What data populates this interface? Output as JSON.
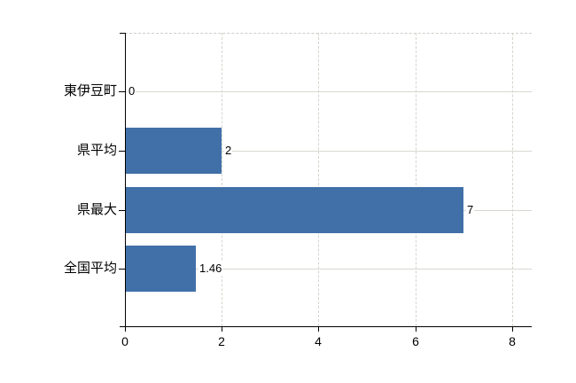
{
  "chart_data": {
    "type": "bar",
    "orientation": "horizontal",
    "title": "",
    "categories": [
      "東伊豆町",
      "県平均",
      "県最大",
      "全国平均"
    ],
    "values": [
      0,
      2,
      7,
      1.46
    ],
    "value_labels": [
      "0",
      "2",
      "7",
      "1.46"
    ],
    "x_ticks": [
      0,
      2,
      4,
      6,
      8
    ],
    "x_tick_labels": [
      "0",
      "2",
      "4",
      "6",
      "8"
    ],
    "xlim": [
      0,
      8.4
    ],
    "ylabel": "",
    "xlabel": "",
    "grid": true,
    "legend_position": "none",
    "bar_color": "#4170A8",
    "axis_color": "#000000",
    "h_gridline_color": "#d6dad1",
    "v_gridline_color": "#d2d6cc",
    "plot_border_color": "#ccd0c8",
    "text_color": "#000000",
    "background_color": "#ffffff"
  }
}
